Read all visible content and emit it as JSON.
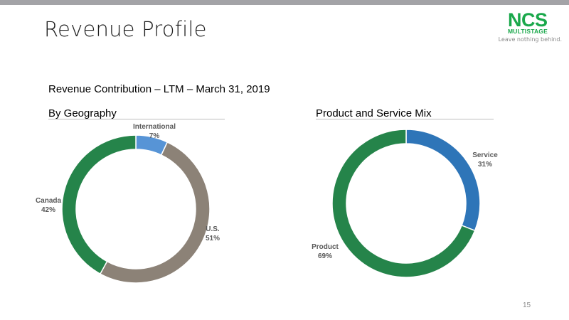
{
  "slide": {
    "title": "Revenue Profile",
    "subtitle": "Revenue Contribution – LTM – March 31, 2019",
    "page_number": "15"
  },
  "logo": {
    "text": "NCS",
    "sub": "MULTISTAGE",
    "tagline": "Leave nothing behind."
  },
  "colors": {
    "green": "#25844a",
    "taupe": "#8c8277",
    "light_blue": "#5794d6",
    "blue": "#2e75b8"
  },
  "chart_data": [
    {
      "type": "pie",
      "subtype": "donut",
      "title": "By Geography",
      "slices": [
        {
          "label": "International",
          "value": 7,
          "display": "7%",
          "color": "#5794d6"
        },
        {
          "label": "U.S.",
          "value": 51,
          "display": "51%",
          "color": "#8c8277"
        },
        {
          "label": "Canada",
          "value": 42,
          "display": "42%",
          "color": "#25844a"
        }
      ]
    },
    {
      "type": "pie",
      "subtype": "donut",
      "title": "Product and Service Mix",
      "slices": [
        {
          "label": "Service",
          "value": 31,
          "display": "31%",
          "color": "#2e75b8"
        },
        {
          "label": "Product",
          "value": 69,
          "display": "69%",
          "color": "#25844a"
        }
      ]
    }
  ]
}
